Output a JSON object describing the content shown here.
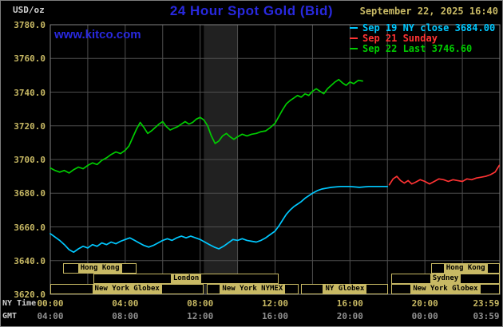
{
  "header": {
    "units": "USD/oz",
    "title": "24 Hour Spot Gold (Bid)",
    "datetime": "September 22, 2025 16:40",
    "website": "www.kitco.com"
  },
  "xaxis": {
    "ny_label": "NY Time",
    "gmt_label": "GMT"
  },
  "colors": {
    "background": "#000000",
    "title_blue": "#2929e0",
    "khaki": "#c8b964",
    "gmt_gray": "#909090",
    "light_gray": "#cfcfcf",
    "grid": "#4f4f4f",
    "plot_border": "#828282",
    "band": "#212121",
    "cyan": "#00c8ff",
    "red": "#ff3333",
    "green": "#00cc00"
  },
  "sessions": {
    "rows": [
      [
        {
          "label": "Hong Kong",
          "start": 0.7,
          "end": 4.6
        },
        {
          "label": "Hong Kong",
          "start": 20.35,
          "end": 24
        }
      ],
      [
        {
          "label": "London",
          "start": 2.3,
          "end": 12.2
        },
        {
          "label": "Sydney",
          "start": 18.2,
          "end": 24
        }
      ],
      [
        {
          "label": "New York Globex",
          "start": 0,
          "end": 8.2
        },
        {
          "label": "New York NYMEX",
          "start": 8.35,
          "end": 13.25
        },
        {
          "label": "NY Globex",
          "start": 13.4,
          "end": 18.05
        },
        {
          "label": "New York Globex",
          "start": 18.2,
          "end": 24
        }
      ]
    ]
  },
  "chart_data": {
    "type": "line",
    "title": "24 Hour Spot Gold (Bid)",
    "ylabel": "USD/oz",
    "xlabel": "NY Time",
    "ylim": [
      3620,
      3780
    ],
    "yticks": [
      3620,
      3640,
      3660,
      3680,
      3700,
      3720,
      3740,
      3760,
      3780
    ],
    "x_range_hours": [
      0,
      24
    ],
    "grid_hours_step": 2,
    "grid": true,
    "legend_position": "top-right",
    "shaded_band_hours": [
      8.2,
      10
    ],
    "prev_ny_close": 3684.0,
    "last": 3746.6,
    "x_ticks": [
      {
        "hour": 0,
        "ny": "00:00",
        "gmt": "04:00"
      },
      {
        "hour": 4,
        "ny": "04:00",
        "gmt": "08:00"
      },
      {
        "hour": 8,
        "ny": "08:00",
        "gmt": "12:00"
      },
      {
        "hour": 12,
        "ny": "12:00",
        "gmt": "16:00"
      },
      {
        "hour": 16,
        "ny": "16:00",
        "gmt": "20:00"
      },
      {
        "hour": 20,
        "ny": "20:00",
        "gmt": "00:00"
      },
      {
        "hour": 24,
        "ny": "23:59",
        "gmt": "03:59"
      }
    ],
    "series": [
      {
        "legend_label": "Sep 19 NY close 3684.00",
        "color": "cyan",
        "points": [
          [
            0,
            3656
          ],
          [
            0.25,
            3654
          ],
          [
            0.5,
            3652
          ],
          [
            0.75,
            3649.5
          ],
          [
            1,
            3646.5
          ],
          [
            1.25,
            3645
          ],
          [
            1.5,
            3647
          ],
          [
            1.75,
            3648.5
          ],
          [
            2,
            3647.5
          ],
          [
            2.25,
            3649.5
          ],
          [
            2.5,
            3648.5
          ],
          [
            2.75,
            3650.5
          ],
          [
            3,
            3649.5
          ],
          [
            3.25,
            3651
          ],
          [
            3.5,
            3650
          ],
          [
            3.75,
            3651.5
          ],
          [
            4,
            3652.5
          ],
          [
            4.25,
            3653.5
          ],
          [
            4.5,
            3652
          ],
          [
            4.75,
            3650.5
          ],
          [
            5,
            3649
          ],
          [
            5.25,
            3648
          ],
          [
            5.5,
            3649
          ],
          [
            5.75,
            3650.5
          ],
          [
            6,
            3652
          ],
          [
            6.25,
            3653
          ],
          [
            6.5,
            3652
          ],
          [
            6.75,
            3653.5
          ],
          [
            7,
            3654.5
          ],
          [
            7.25,
            3653.5
          ],
          [
            7.5,
            3654.5
          ],
          [
            7.75,
            3653.5
          ],
          [
            8,
            3652.5
          ],
          [
            8.25,
            3651
          ],
          [
            8.5,
            3649.5
          ],
          [
            8.75,
            3648
          ],
          [
            9,
            3647
          ],
          [
            9.25,
            3648.5
          ],
          [
            9.5,
            3650.5
          ],
          [
            9.75,
            3652.5
          ],
          [
            10,
            3652
          ],
          [
            10.25,
            3653
          ],
          [
            10.5,
            3652
          ],
          [
            10.75,
            3651.5
          ],
          [
            11,
            3651
          ],
          [
            11.25,
            3652
          ],
          [
            11.5,
            3653.5
          ],
          [
            11.75,
            3655.5
          ],
          [
            12,
            3657.5
          ],
          [
            12.2,
            3660.5
          ],
          [
            12.4,
            3664
          ],
          [
            12.6,
            3667.5
          ],
          [
            12.8,
            3670
          ],
          [
            13,
            3672
          ],
          [
            13.2,
            3673.5
          ],
          [
            13.4,
            3675
          ],
          [
            13.6,
            3677
          ],
          [
            13.8,
            3678.5
          ],
          [
            14,
            3680
          ],
          [
            14.25,
            3681.5
          ],
          [
            14.5,
            3682.5
          ],
          [
            14.75,
            3683
          ],
          [
            15,
            3683.5
          ],
          [
            15.5,
            3684
          ],
          [
            16,
            3684
          ],
          [
            16.5,
            3683.5
          ],
          [
            17,
            3684
          ],
          [
            17.5,
            3684
          ],
          [
            18,
            3684
          ]
        ]
      },
      {
        "legend_label": "Sep 21 Sunday",
        "color": "red",
        "points": [
          [
            18.1,
            3685
          ],
          [
            18.3,
            3688.5
          ],
          [
            18.5,
            3690
          ],
          [
            18.7,
            3687.5
          ],
          [
            18.9,
            3686
          ],
          [
            19.1,
            3687.5
          ],
          [
            19.3,
            3685.5
          ],
          [
            19.5,
            3686.5
          ],
          [
            19.75,
            3688
          ],
          [
            20,
            3687
          ],
          [
            20.25,
            3685.5
          ],
          [
            20.5,
            3687
          ],
          [
            20.75,
            3688.5
          ],
          [
            21,
            3688
          ],
          [
            21.25,
            3687
          ],
          [
            21.5,
            3688
          ],
          [
            21.75,
            3687.5
          ],
          [
            22,
            3687
          ],
          [
            22.25,
            3688.5
          ],
          [
            22.5,
            3688
          ],
          [
            22.75,
            3689
          ],
          [
            23,
            3689.5
          ],
          [
            23.25,
            3690
          ],
          [
            23.5,
            3691
          ],
          [
            23.75,
            3692.5
          ],
          [
            23.97,
            3696.5
          ]
        ]
      },
      {
        "legend_label": "Sep 22 Last 3746.60",
        "color": "green",
        "points": [
          [
            0,
            3695
          ],
          [
            0.25,
            3693.5
          ],
          [
            0.5,
            3692.5
          ],
          [
            0.75,
            3693.5
          ],
          [
            1,
            3692
          ],
          [
            1.25,
            3694
          ],
          [
            1.5,
            3695.5
          ],
          [
            1.75,
            3694.5
          ],
          [
            2,
            3696.5
          ],
          [
            2.25,
            3698
          ],
          [
            2.5,
            3697
          ],
          [
            2.75,
            3699.5
          ],
          [
            3,
            3701
          ],
          [
            3.25,
            3703
          ],
          [
            3.5,
            3704.5
          ],
          [
            3.75,
            3703.5
          ],
          [
            4,
            3705.5
          ],
          [
            4.2,
            3708
          ],
          [
            4.4,
            3713
          ],
          [
            4.6,
            3718
          ],
          [
            4.8,
            3722
          ],
          [
            5,
            3719
          ],
          [
            5.2,
            3715.5
          ],
          [
            5.4,
            3717
          ],
          [
            5.6,
            3719
          ],
          [
            5.8,
            3721
          ],
          [
            6,
            3722.5
          ],
          [
            6.2,
            3719.5
          ],
          [
            6.4,
            3717.5
          ],
          [
            6.6,
            3718.5
          ],
          [
            6.8,
            3719.5
          ],
          [
            7,
            3721
          ],
          [
            7.2,
            3722.5
          ],
          [
            7.4,
            3721
          ],
          [
            7.6,
            3722
          ],
          [
            7.8,
            3724
          ],
          [
            8,
            3725
          ],
          [
            8.2,
            3723.5
          ],
          [
            8.4,
            3720
          ],
          [
            8.6,
            3714
          ],
          [
            8.8,
            3709.5
          ],
          [
            9,
            3711
          ],
          [
            9.2,
            3714
          ],
          [
            9.4,
            3715.5
          ],
          [
            9.6,
            3713.5
          ],
          [
            9.8,
            3712
          ],
          [
            10,
            3713.5
          ],
          [
            10.25,
            3715
          ],
          [
            10.5,
            3714
          ],
          [
            10.75,
            3715
          ],
          [
            11,
            3715.5
          ],
          [
            11.25,
            3716.5
          ],
          [
            11.5,
            3717
          ],
          [
            11.75,
            3719
          ],
          [
            12,
            3721.5
          ],
          [
            12.2,
            3725.5
          ],
          [
            12.4,
            3729.5
          ],
          [
            12.6,
            3733
          ],
          [
            12.8,
            3735
          ],
          [
            13,
            3736.5
          ],
          [
            13.2,
            3738
          ],
          [
            13.4,
            3737
          ],
          [
            13.6,
            3739
          ],
          [
            13.8,
            3738
          ],
          [
            14,
            3740.5
          ],
          [
            14.2,
            3742
          ],
          [
            14.4,
            3740.5
          ],
          [
            14.6,
            3739
          ],
          [
            14.8,
            3742
          ],
          [
            15,
            3744
          ],
          [
            15.2,
            3746
          ],
          [
            15.4,
            3747.5
          ],
          [
            15.6,
            3745.5
          ],
          [
            15.8,
            3744
          ],
          [
            16,
            3746
          ],
          [
            16.2,
            3745
          ],
          [
            16.45,
            3747
          ],
          [
            16.67,
            3746.6
          ]
        ]
      }
    ]
  }
}
